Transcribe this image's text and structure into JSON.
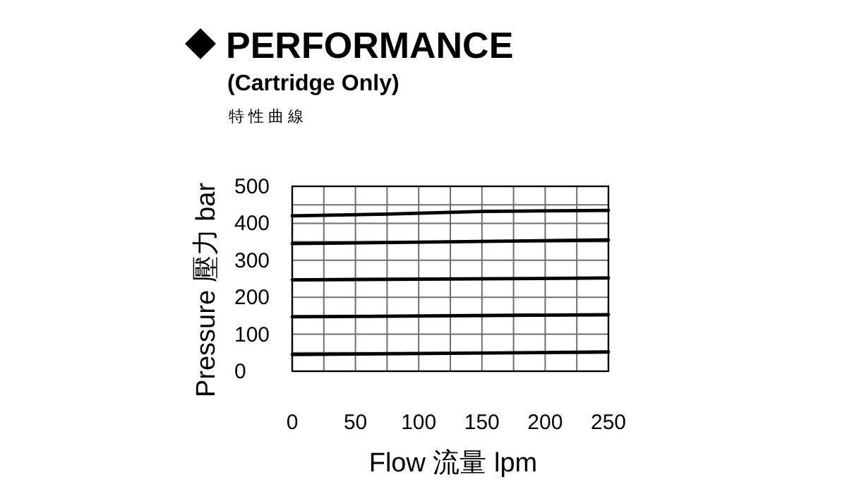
{
  "chart_data": {
    "type": "line",
    "title": "PERFORMANCE",
    "subtitle": "(Cartridge Only)",
    "annotations": [
      "特性曲線"
    ],
    "xlabel": "Flow 流量 lpm",
    "ylabel": "Pressure 壓力 bar",
    "xlim": [
      0,
      250
    ],
    "ylim": [
      0,
      500
    ],
    "xticks": [
      0,
      {
        "value": 25,
        "label": null
      },
      50,
      {
        "value": 75,
        "label": null
      },
      100,
      {
        "value": 125,
        "label": null
      },
      150,
      {
        "value": 175,
        "label": null
      },
      200,
      {
        "value": 225,
        "label": null
      },
      250
    ],
    "yticks": [
      0,
      {
        "value": 50,
        "label": null
      },
      100,
      {
        "value": 150,
        "label": null
      },
      200,
      {
        "value": 250,
        "label": null
      },
      300,
      {
        "value": 350,
        "label": null
      },
      400,
      {
        "value": 450,
        "label": null
      },
      500
    ],
    "grid": true,
    "marker": "none",
    "line_style": "solid",
    "series": [
      {
        "color": "#000000",
        "x": [
          0,
          75,
          150,
          250
        ],
        "values": [
          420,
          425,
          432,
          435
        ]
      },
      {
        "color": "#000000",
        "x": [
          0,
          125,
          250
        ],
        "values": [
          345,
          350,
          355
        ]
      },
      {
        "color": "#000000",
        "x": [
          0,
          250
        ],
        "values": [
          247,
          252
        ]
      },
      {
        "color": "#000000",
        "x": [
          0,
          250
        ],
        "values": [
          147,
          153
        ]
      },
      {
        "color": "#000000",
        "x": [
          0,
          250
        ],
        "values": [
          45,
          52
        ]
      }
    ]
  }
}
